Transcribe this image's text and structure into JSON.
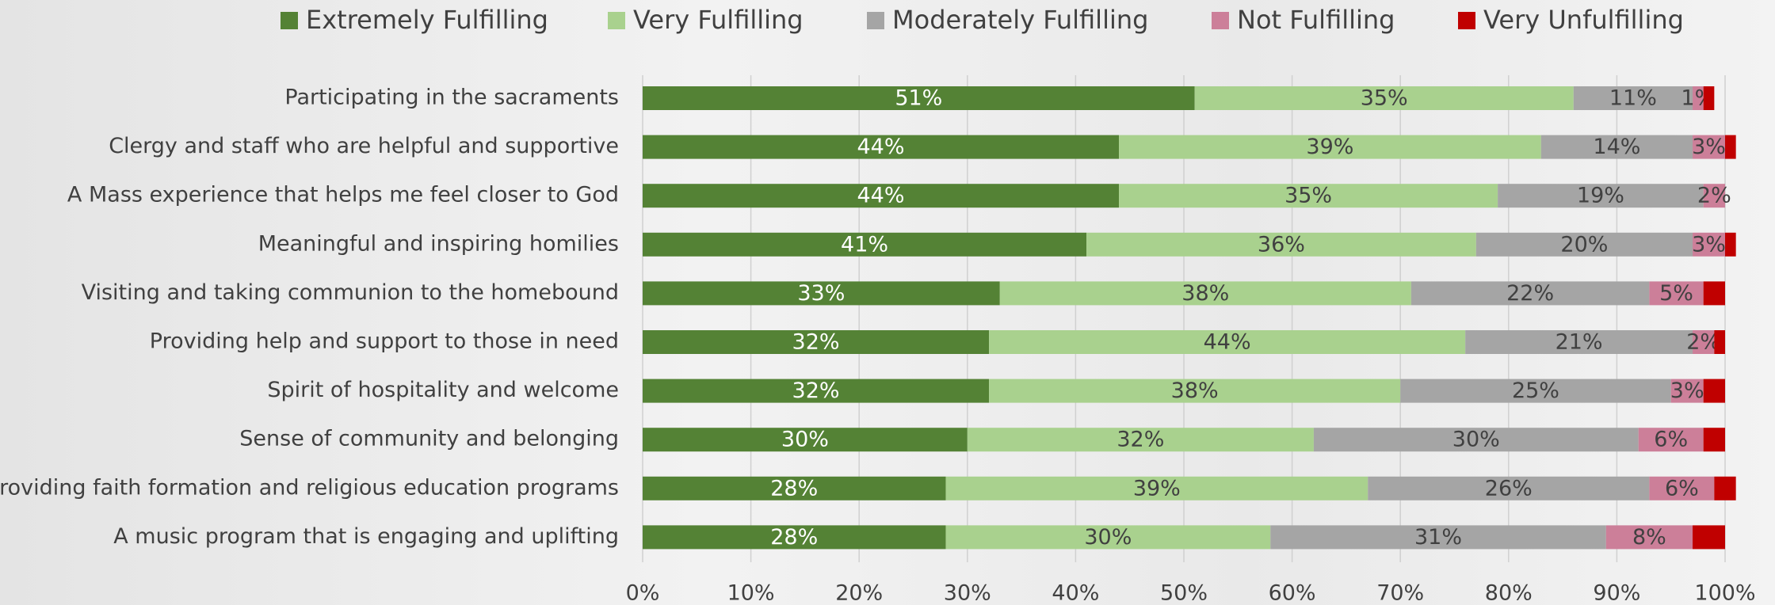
{
  "chart_data": {
    "type": "stacked_bar_horizontal",
    "categories": [
      "Participating in the sacraments",
      "Clergy and staff who are helpful and supportive",
      "A Mass experience that helps me feel closer to God",
      "Meaningful and inspiring homilies",
      "Visiting and taking communion to the homebound",
      "Providing help and support to those in need",
      "Spirit of hospitality and welcome",
      "Sense of community and belonging",
      "Providing faith formation and religious education programs",
      "A music program that is engaging and uplifting"
    ],
    "series": [
      {
        "name": "Extremely Fulfilling",
        "color": "#548235",
        "values": [
          51,
          44,
          44,
          41,
          33,
          32,
          32,
          30,
          28,
          28
        ],
        "value_labels": [
          "51%",
          "44%",
          "44%",
          "41%",
          "33%",
          "32%",
          "32%",
          "30%",
          "28%",
          "28%"
        ]
      },
      {
        "name": "Very Fulfilling",
        "color": "#a9d18e",
        "values": [
          35,
          39,
          35,
          36,
          38,
          44,
          38,
          32,
          39,
          30
        ],
        "value_labels": [
          "35%",
          "39%",
          "35%",
          "36%",
          "38%",
          "44%",
          "38%",
          "32%",
          "39%",
          "30%"
        ]
      },
      {
        "name": "Moderately Fulfilling",
        "color": "#a5a5a5",
        "values": [
          11,
          14,
          19,
          20,
          22,
          21,
          25,
          30,
          26,
          31
        ],
        "value_labels": [
          "11%",
          "14%",
          "19%",
          "20%",
          "22%",
          "21%",
          "25%",
          "30%",
          "26%",
          "31%"
        ]
      },
      {
        "name": "Not Fulfilling",
        "color": "#cc7f99",
        "values": [
          1,
          3,
          2,
          3,
          5,
          2,
          3,
          6,
          6,
          8
        ],
        "value_labels": [
          "1%",
          "3%",
          "2%",
          "3%",
          "5%",
          "2%",
          "3%",
          "6%",
          "6%",
          "8%"
        ]
      },
      {
        "name": "Very Unfulfilling",
        "color": "#c00000",
        "values": [
          1,
          1,
          0,
          1,
          2,
          1,
          2,
          2,
          2,
          3
        ]
      }
    ],
    "xlim": [
      0,
      100
    ],
    "xticks": [
      {
        "value": 0,
        "label": "0%"
      },
      {
        "value": 10,
        "label": "10%"
      },
      {
        "value": 20,
        "label": "20%"
      },
      {
        "value": 30,
        "label": "30%"
      },
      {
        "value": 40,
        "label": "40%"
      },
      {
        "value": 50,
        "label": "50%"
      },
      {
        "value": 60,
        "label": "60%"
      },
      {
        "value": 70,
        "label": "70%"
      },
      {
        "value": 80,
        "label": "80%"
      },
      {
        "value": 90,
        "label": "90%"
      },
      {
        "value": 100,
        "label": "100%"
      }
    ],
    "grid": true,
    "legend": "top"
  }
}
